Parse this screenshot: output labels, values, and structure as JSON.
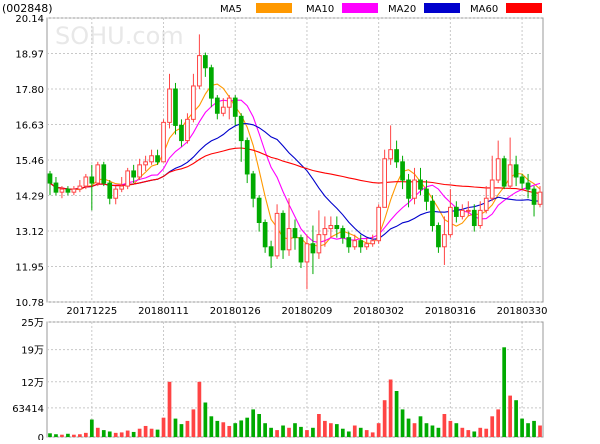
{
  "chart_data": [
    {
      "type": "candlestick",
      "title": "(002848)",
      "watermark": "SOHU.com",
      "legend": [
        {
          "name": "MA5",
          "color": "#ff9900"
        },
        {
          "name": "MA10",
          "color": "#ff00ff"
        },
        {
          "name": "MA20",
          "color": "#0000cc"
        },
        {
          "name": "MA60",
          "color": "#ff0000"
        }
      ],
      "y_ticks": [
        "20.14",
        "18.97",
        "17.80",
        "16.63",
        "15.46",
        "14.29",
        "13.12",
        "11.95",
        "10.78"
      ],
      "ylim": [
        10.78,
        20.14
      ],
      "x_tick_labels": [
        "20171225",
        "20180111",
        "20180126",
        "20180209",
        "20180302",
        "20180316",
        "20180330"
      ],
      "x_tick_index": [
        7,
        19,
        31,
        43,
        55,
        67,
        79
      ],
      "colors": {
        "up": "#ff4444",
        "down": "#00aa00",
        "grid": "#c8c8c8",
        "axis": "#000000"
      },
      "candles": [
        [
          15.0,
          14.7,
          15.1,
          14.3
        ],
        [
          14.7,
          14.4,
          14.9,
          14.3
        ],
        [
          14.4,
          14.5,
          14.6,
          14.2
        ],
        [
          14.5,
          14.4,
          14.6,
          14.3
        ],
        [
          14.4,
          14.5,
          14.6,
          14.3
        ],
        [
          14.5,
          14.6,
          14.8,
          14.4
        ],
        [
          14.6,
          14.9,
          15.0,
          14.5
        ],
        [
          14.9,
          14.7,
          15.3,
          13.8
        ],
        [
          14.7,
          15.3,
          15.4,
          14.6
        ],
        [
          15.3,
          14.7,
          15.4,
          14.6
        ],
        [
          14.7,
          14.2,
          14.8,
          14.0
        ],
        [
          14.2,
          14.5,
          14.6,
          14.0
        ],
        [
          14.5,
          14.6,
          14.9,
          14.4
        ],
        [
          14.6,
          15.1,
          15.2,
          14.5
        ],
        [
          15.1,
          14.9,
          15.3,
          14.7
        ],
        [
          14.9,
          15.3,
          15.5,
          14.8
        ],
        [
          15.3,
          15.4,
          15.6,
          15.1
        ],
        [
          15.4,
          15.6,
          15.8,
          15.3
        ],
        [
          15.6,
          15.4,
          15.8,
          15.3
        ],
        [
          15.4,
          16.7,
          16.8,
          15.4
        ],
        [
          16.7,
          17.8,
          18.3,
          16.5
        ],
        [
          17.8,
          16.6,
          18.0,
          16.3
        ],
        [
          16.6,
          16.1,
          16.8,
          15.9
        ],
        [
          16.1,
          16.8,
          17.0,
          16.0
        ],
        [
          16.8,
          17.9,
          18.3,
          16.7
        ],
        [
          17.9,
          18.9,
          19.6,
          17.8
        ],
        [
          18.9,
          18.5,
          19.0,
          18.2
        ],
        [
          18.5,
          17.5,
          18.6,
          17.2
        ],
        [
          17.5,
          17.0,
          17.6,
          16.8
        ],
        [
          17.0,
          17.2,
          17.5,
          16.9
        ],
        [
          17.2,
          17.5,
          17.6,
          16.8
        ],
        [
          17.5,
          16.9,
          17.6,
          16.6
        ],
        [
          16.9,
          16.1,
          17.0,
          15.4
        ],
        [
          16.1,
          15.0,
          16.2,
          14.7
        ],
        [
          15.0,
          14.2,
          15.1,
          13.9
        ],
        [
          14.2,
          13.4,
          14.3,
          13.1
        ],
        [
          13.4,
          12.6,
          13.5,
          12.4
        ],
        [
          12.6,
          12.3,
          12.8,
          11.9
        ],
        [
          12.3,
          13.7,
          14.0,
          12.2
        ],
        [
          13.7,
          12.5,
          13.8,
          12.2
        ],
        [
          12.5,
          13.2,
          14.2,
          12.3
        ],
        [
          13.2,
          12.9,
          13.5,
          12.5
        ],
        [
          12.9,
          12.1,
          13.0,
          11.9
        ],
        [
          12.1,
          12.7,
          13.0,
          11.2
        ],
        [
          12.7,
          12.4,
          13.3,
          11.7
        ],
        [
          12.4,
          13.0,
          13.8,
          12.2
        ],
        [
          13.0,
          13.2,
          13.6,
          12.6
        ],
        [
          13.2,
          13.3,
          13.6,
          12.9
        ],
        [
          13.3,
          13.2,
          13.6,
          12.9
        ],
        [
          13.2,
          12.9,
          13.3,
          12.7
        ],
        [
          12.9,
          12.6,
          13.1,
          12.4
        ],
        [
          12.6,
          12.8,
          13.0,
          12.5
        ],
        [
          12.8,
          12.6,
          13.0,
          12.4
        ],
        [
          12.6,
          12.7,
          12.9,
          12.5
        ],
        [
          12.7,
          12.8,
          13.0,
          12.6
        ],
        [
          12.8,
          13.9,
          14.0,
          12.7
        ],
        [
          13.9,
          15.5,
          15.8,
          13.9
        ],
        [
          15.5,
          15.8,
          16.6,
          15.3
        ],
        [
          15.8,
          15.4,
          16.1,
          15.2
        ],
        [
          15.4,
          14.8,
          15.6,
          14.5
        ],
        [
          14.8,
          14.2,
          15.0,
          13.9
        ],
        [
          14.2,
          14.8,
          15.2,
          14.0
        ],
        [
          14.8,
          14.5,
          15.2,
          14.3
        ],
        [
          14.5,
          14.1,
          14.8,
          13.8
        ],
        [
          14.1,
          13.3,
          14.3,
          13.1
        ],
        [
          13.3,
          12.6,
          13.4,
          12.4
        ],
        [
          12.6,
          13.0,
          13.6,
          12.0
        ],
        [
          13.0,
          13.9,
          14.5,
          12.9
        ],
        [
          13.9,
          13.6,
          14.1,
          13.4
        ],
        [
          13.6,
          13.8,
          14.0,
          13.5
        ],
        [
          13.8,
          13.8,
          14.1,
          13.6
        ],
        [
          13.8,
          13.3,
          14.0,
          13.1
        ],
        [
          13.3,
          13.8,
          14.1,
          13.2
        ],
        [
          13.8,
          14.2,
          14.6,
          13.7
        ],
        [
          14.2,
          14.8,
          15.6,
          14.1
        ],
        [
          14.8,
          15.5,
          16.1,
          14.7
        ],
        [
          15.5,
          14.6,
          15.6,
          14.5
        ],
        [
          14.6,
          15.3,
          16.2,
          14.5
        ],
        [
          15.3,
          14.9,
          15.6,
          14.6
        ],
        [
          14.9,
          14.7,
          15.0,
          14.5
        ],
        [
          14.7,
          14.5,
          15.0,
          14.2
        ],
        [
          14.5,
          14.0,
          14.6,
          13.6
        ],
        [
          14.0,
          14.4,
          14.6,
          13.9
        ]
      ],
      "volumes": [
        8000,
        6000,
        5000,
        7000,
        5000,
        6000,
        9000,
        38000,
        20000,
        15000,
        12000,
        9000,
        10000,
        14000,
        11000,
        18000,
        24000,
        18000,
        16000,
        42000,
        120000,
        40000,
        28000,
        35000,
        60000,
        120000,
        75000,
        45000,
        35000,
        32000,
        24000,
        30000,
        36000,
        42000,
        60000,
        50000,
        30000,
        20000,
        15000,
        25000,
        20000,
        30000,
        22000,
        15000,
        20000,
        50000,
        35000,
        30000,
        28000,
        18000,
        12000,
        25000,
        20000,
        15000,
        10000,
        30000,
        80000,
        125000,
        100000,
        60000,
        40000,
        30000,
        45000,
        30000,
        25000,
        20000,
        50000,
        35000,
        30000,
        20000,
        15000,
        12000,
        20000,
        18000,
        45000,
        60000,
        195000,
        90000,
        80000,
        40000,
        30000,
        35000,
        25000
      ],
      "volume_labels": [
        "25万",
        "19万",
        "12万",
        "63414",
        "0"
      ],
      "volume_max": 250000
    }
  ]
}
